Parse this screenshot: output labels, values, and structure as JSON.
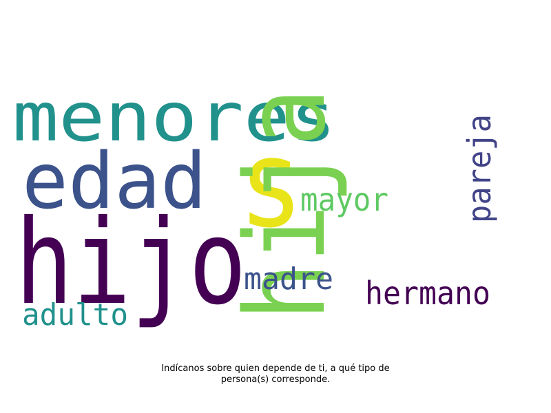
{
  "word_cloud": {
    "words": [
      {
        "text": "menores",
        "color": "#21918c",
        "orientation": "horizontal"
      },
      {
        "text": "edad",
        "color": "#3b528b",
        "orientation": "horizontal"
      },
      {
        "text": "s",
        "color": "#e8e419",
        "orientation": "horizontal"
      },
      {
        "text": "hija",
        "color": "#7ad151",
        "orientation": "vertical"
      },
      {
        "text": "pareja",
        "color": "#414487",
        "orientation": "vertical"
      },
      {
        "text": "mayor",
        "color": "#5ec962",
        "orientation": "horizontal"
      },
      {
        "text": "hijo",
        "color": "#440154",
        "orientation": "horizontal"
      },
      {
        "text": "madre",
        "color": "#3b528b",
        "orientation": "horizontal"
      },
      {
        "text": "hermano",
        "color": "#440154",
        "orientation": "horizontal"
      },
      {
        "text": "adulto",
        "color": "#21918c",
        "orientation": "horizontal"
      }
    ]
  },
  "caption": {
    "line1": "Indícanos sobre quien depende de ti, a qué tipo de",
    "line2": "persona(s) corresponde."
  }
}
